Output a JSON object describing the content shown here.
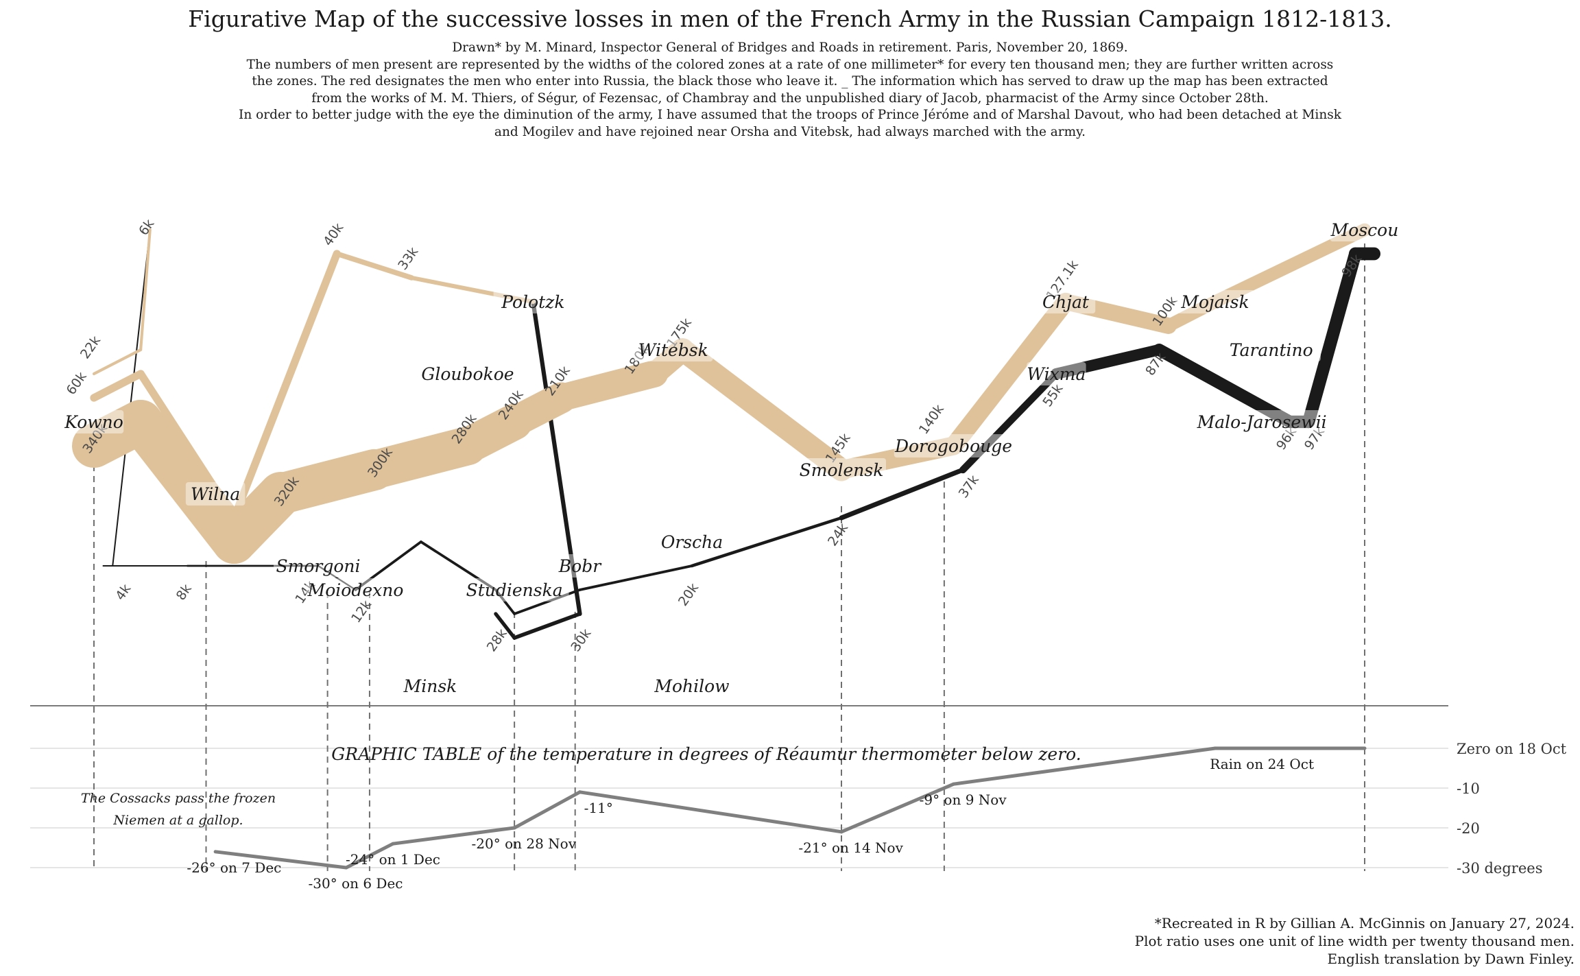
{
  "title": "Figurative Map of the successive losses in men of the French Army in the Russian Campaign 1812-1813.",
  "subtitle": [
    "Drawn* by M. Minard, Inspector General of Bridges and Roads in retirement. Paris, November 20, 1869.",
    "The numbers of men present are represented by the widths of the colored zones at a rate of one millimeter* for every ten thousand men; they are further written across",
    "the zones. The red designates the men who enter into Russia, the black those who leave it. _ The information which has served to draw up the map has been extracted",
    "from the works of M. M. Thiers, of Ségur, of Fezensac, of Chambray and the unpublished diary of Jacob, pharmacist of the Army since October 28th.",
    "In order to better judge with the eye the diminution of the army, I have assumed that the troops of Prince Jéróme and of Marshal Davout, who had been detached at Minsk",
    "and Mogilev and have rejoined near Orsha and Vitebsk, had always marched with the army."
  ],
  "caption": [
    "*Recreated in R by Gillian A. McGinnis on January 27, 2024.",
    "Plot ratio uses one unit of line width per twenty thousand men.",
    "English translation by Dawn Finley."
  ],
  "colors": {
    "advance": "#dfc29a",
    "retreat": "#1b1a1a",
    "temperature": "#7f7f7f",
    "dashes": "#6f6f6f",
    "grid": "#e5e5e5"
  },
  "chart_data": [
    {
      "type": "line",
      "name": "troops",
      "x_range": [
        24.0,
        37.7
      ],
      "y_range": [
        53.8,
        56.0
      ],
      "segments": [
        {
          "direction": "A",
          "group": 1,
          "points": [
            {
              "lon": 24.0,
              "lat": 54.9,
              "survivors": 340000
            },
            {
              "lon": 24.5,
              "lat": 55.0,
              "survivors": 340000
            },
            {
              "lon": 25.5,
              "lat": 54.5,
              "survivors": 340000
            },
            {
              "lon": 26.0,
              "lat": 54.7,
              "survivors": 320000
            },
            {
              "lon": 27.0,
              "lat": 54.8,
              "survivors": 300000
            },
            {
              "lon": 28.0,
              "lat": 54.9,
              "survivors": 280000
            },
            {
              "lon": 28.5,
              "lat": 55.0,
              "survivors": 240000
            },
            {
              "lon": 29.0,
              "lat": 55.1,
              "survivors": 210000
            },
            {
              "lon": 30.0,
              "lat": 55.2,
              "survivors": 180000
            },
            {
              "lon": 30.3,
              "lat": 55.3,
              "survivors": 175000
            },
            {
              "lon": 32.0,
              "lat": 54.8,
              "survivors": 145000
            },
            {
              "lon": 33.2,
              "lat": 54.9,
              "survivors": 140000
            },
            {
              "lon": 34.4,
              "lat": 55.5,
              "survivors": 127100
            },
            {
              "lon": 35.5,
              "lat": 55.4,
              "survivors": 100000
            },
            {
              "lon": 36.0,
              "lat": 55.5,
              "survivors": 100000
            },
            {
              "lon": 37.6,
              "lat": 55.8,
              "survivors": 100000
            }
          ]
        },
        {
          "direction": "R",
          "group": 1,
          "points": [
            {
              "lon": 37.7,
              "lat": 55.7,
              "survivors": 100000
            },
            {
              "lon": 37.5,
              "lat": 55.7,
              "survivors": 98000
            },
            {
              "lon": 37.0,
              "lat": 55.0,
              "survivors": 97000
            },
            {
              "lon": 36.8,
              "lat": 55.0,
              "survivors": 96000
            },
            {
              "lon": 35.4,
              "lat": 55.3,
              "survivors": 87000
            },
            {
              "lon": 34.3,
              "lat": 55.2,
              "survivors": 55000
            },
            {
              "lon": 33.3,
              "lat": 54.8,
              "survivors": 37000
            },
            {
              "lon": 32.0,
              "lat": 54.6,
              "survivors": 24000
            },
            {
              "lon": 30.4,
              "lat": 54.4,
              "survivors": 20000
            },
            {
              "lon": 29.2,
              "lat": 54.3,
              "survivors": 20000
            },
            {
              "lon": 28.5,
              "lat": 54.2,
              "survivors": 20000
            },
            {
              "lon": 28.3,
              "lat": 54.3,
              "survivors": 20000
            },
            {
              "lon": 27.5,
              "lat": 54.5,
              "survivors": 20000
            },
            {
              "lon": 26.8,
              "lat": 54.3,
              "survivors": 12000
            },
            {
              "lon": 26.4,
              "lat": 54.4,
              "survivors": 14000
            },
            {
              "lon": 25.0,
              "lat": 54.4,
              "survivors": 8000
            },
            {
              "lon": 24.4,
              "lat": 54.4,
              "survivors": 4000
            },
            {
              "lon": 24.2,
              "lat": 54.4,
              "survivors": 4000
            },
            {
              "lon": 24.1,
              "lat": 54.4,
              "survivors": 4000
            }
          ]
        },
        {
          "direction": "A",
          "group": 2,
          "points": [
            {
              "lon": 24.0,
              "lat": 55.1,
              "survivors": 60000
            },
            {
              "lon": 24.5,
              "lat": 55.2,
              "survivors": 60000
            },
            {
              "lon": 25.5,
              "lat": 54.6,
              "survivors": 60000
            },
            {
              "lon": 26.6,
              "lat": 55.7,
              "survivors": 40000
            },
            {
              "lon": 27.4,
              "lat": 55.6,
              "survivors": 33000
            },
            {
              "lon": 28.7,
              "lat": 55.5,
              "survivors": 33000
            }
          ]
        },
        {
          "direction": "R",
          "group": 2,
          "points": [
            {
              "lon": 28.7,
              "lat": 55.5,
              "survivors": 33000
            },
            {
              "lon": 29.2,
              "lat": 54.2,
              "survivors": 30000
            },
            {
              "lon": 28.5,
              "lat": 54.1,
              "survivors": 28000
            },
            {
              "lon": 28.3,
              "lat": 54.2,
              "survivors": 28000
            }
          ]
        },
        {
          "direction": "A",
          "group": 3,
          "points": [
            {
              "lon": 24.0,
              "lat": 55.2,
              "survivors": 22000
            },
            {
              "lon": 24.5,
              "lat": 55.3,
              "survivors": 22000
            },
            {
              "lon": 24.6,
              "lat": 55.8,
              "survivors": 6000
            }
          ]
        },
        {
          "direction": "R",
          "group": 3,
          "points": [
            {
              "lon": 24.6,
              "lat": 55.8,
              "survivors": 6000
            },
            {
              "lon": 24.2,
              "lat": 54.4,
              "survivors": 6000
            },
            {
              "lon": 24.1,
              "lat": 54.4,
              "survivors": 6000
            }
          ]
        }
      ],
      "survivor_labels": [
        {
          "text": "6k",
          "lon": 24.6,
          "lat": 55.8
        },
        {
          "text": "22k",
          "lon": 24.0,
          "lat": 55.3
        },
        {
          "text": "60k",
          "lon": 23.85,
          "lat": 55.15
        },
        {
          "text": "340k",
          "lon": 24.05,
          "lat": 54.92
        },
        {
          "text": "40k",
          "lon": 26.6,
          "lat": 55.77
        },
        {
          "text": "33k",
          "lon": 27.4,
          "lat": 55.67
        },
        {
          "text": "320k",
          "lon": 26.1,
          "lat": 54.7
        },
        {
          "text": "300k",
          "lon": 27.1,
          "lat": 54.82
        },
        {
          "text": "280k",
          "lon": 28.0,
          "lat": 54.96
        },
        {
          "text": "240k",
          "lon": 28.5,
          "lat": 55.06
        },
        {
          "text": "210k",
          "lon": 29.0,
          "lat": 55.16
        },
        {
          "text": "180k",
          "lon": 29.85,
          "lat": 55.25
        },
        {
          "text": "175k",
          "lon": 30.3,
          "lat": 55.36
        },
        {
          "text": "145k",
          "lon": 32.0,
          "lat": 54.88
        },
        {
          "text": "140k",
          "lon": 33.0,
          "lat": 55.0
        },
        {
          "text": "127.1k",
          "lon": 34.4,
          "lat": 55.58
        },
        {
          "text": "100k",
          "lon": 35.5,
          "lat": 55.45
        },
        {
          "text": "98k",
          "lon": 37.5,
          "lat": 55.64
        },
        {
          "text": "97k",
          "lon": 37.1,
          "lat": 54.92
        },
        {
          "text": "96k",
          "lon": 36.8,
          "lat": 54.92
        },
        {
          "text": "87k",
          "lon": 35.4,
          "lat": 55.23
        },
        {
          "text": "55k",
          "lon": 34.3,
          "lat": 55.1
        },
        {
          "text": "37k",
          "lon": 33.4,
          "lat": 54.72
        },
        {
          "text": "24k",
          "lon": 32.0,
          "lat": 54.52
        },
        {
          "text": "20k",
          "lon": 30.4,
          "lat": 54.27
        },
        {
          "text": "12k",
          "lon": 26.9,
          "lat": 54.2
        },
        {
          "text": "14k",
          "lon": 26.3,
          "lat": 54.28
        },
        {
          "text": "8k",
          "lon": 25.0,
          "lat": 54.28
        },
        {
          "text": "4k",
          "lon": 24.35,
          "lat": 54.28
        },
        {
          "text": "30k",
          "lon": 29.25,
          "lat": 54.08
        },
        {
          "text": "28k",
          "lon": 28.35,
          "lat": 54.08
        }
      ],
      "cities": [
        {
          "city": "Kowno",
          "lon": 24.0,
          "lat": 55.0
        },
        {
          "city": "Wilna",
          "lon": 25.3,
          "lat": 54.7
        },
        {
          "city": "Smorgoni",
          "lon": 26.4,
          "lat": 54.4
        },
        {
          "city": "Moiodexno",
          "lon": 26.8,
          "lat": 54.3
        },
        {
          "city": "Gloubokoe",
          "lon": 28.0,
          "lat": 55.2
        },
        {
          "city": "Minsk",
          "lon": 27.6,
          "lat": 53.9
        },
        {
          "city": "Studienska",
          "lon": 28.5,
          "lat": 54.3
        },
        {
          "city": "Polotzk",
          "lon": 28.7,
          "lat": 55.5
        },
        {
          "city": "Bobr",
          "lon": 29.2,
          "lat": 54.4
        },
        {
          "city": "Witebsk",
          "lon": 30.2,
          "lat": 55.3
        },
        {
          "city": "Orscha",
          "lon": 30.4,
          "lat": 54.5
        },
        {
          "city": "Mohilow",
          "lon": 30.4,
          "lat": 53.9
        },
        {
          "city": "Smolensk",
          "lon": 32.0,
          "lat": 54.8
        },
        {
          "city": "Dorogobouge",
          "lon": 33.2,
          "lat": 54.9
        },
        {
          "city": "Wixma",
          "lon": 34.3,
          "lat": 55.2
        },
        {
          "city": "Chjat",
          "lon": 34.4,
          "lat": 55.5
        },
        {
          "city": "Mojaisk",
          "lon": 36.0,
          "lat": 55.5
        },
        {
          "city": "Moscou",
          "lon": 37.6,
          "lat": 55.8
        },
        {
          "city": "Tarantino",
          "lon": 36.6,
          "lat": 55.3
        },
        {
          "city": "Malo-Jarosewii",
          "lon": 36.5,
          "lat": 55.0
        }
      ],
      "drop_lines_lon": [
        24.0,
        25.2,
        26.5,
        26.95,
        28.5,
        29.15,
        32.0,
        33.1,
        37.6
      ]
    },
    {
      "type": "line",
      "name": "temperature",
      "title": "GRAPHIC TABLE of the temperature in degrees of Réaumur thermometer below zero.",
      "y_ticks": [
        {
          "value": 0,
          "label": "Zero on 18 Oct"
        },
        {
          "value": -10,
          "label": "-10"
        },
        {
          "value": -20,
          "label": "-20"
        },
        {
          "value": -30,
          "label": "-30 degrees"
        }
      ],
      "ylim": [
        -30,
        0
      ],
      "points": [
        {
          "lon": 37.6,
          "temp": 0
        },
        {
          "lon": 36.0,
          "temp": 0
        },
        {
          "lon": 33.2,
          "temp": -9
        },
        {
          "lon": 32.0,
          "temp": -21
        },
        {
          "lon": 29.2,
          "temp": -11
        },
        {
          "lon": 28.5,
          "temp": -20
        },
        {
          "lon": 27.2,
          "temp": -24
        },
        {
          "lon": 26.7,
          "temp": -30
        },
        {
          "lon": 25.3,
          "temp": -26
        }
      ],
      "point_labels": [
        {
          "text": "Rain on 24 Oct",
          "lon": 36.5,
          "temp": 0
        },
        {
          "text": "-9° on 9 Nov",
          "lon": 33.3,
          "temp": -9
        },
        {
          "text": "-21° on 14 Nov",
          "lon": 32.1,
          "temp": -21
        },
        {
          "text": "-11°",
          "lon": 29.4,
          "temp": -11
        },
        {
          "text": "-20° on 28 Nov",
          "lon": 28.6,
          "temp": -20
        },
        {
          "text": "-24° on 1 Dec",
          "lon": 27.2,
          "temp": -24
        },
        {
          "text": "-30° on 6 Dec",
          "lon": 26.8,
          "temp": -30
        },
        {
          "text": "-26° on 7 Dec",
          "lon": 25.5,
          "temp": -26
        }
      ],
      "annotation": [
        "The Cossacks pass the frozen",
        "Niemen at a gallop."
      ]
    }
  ]
}
